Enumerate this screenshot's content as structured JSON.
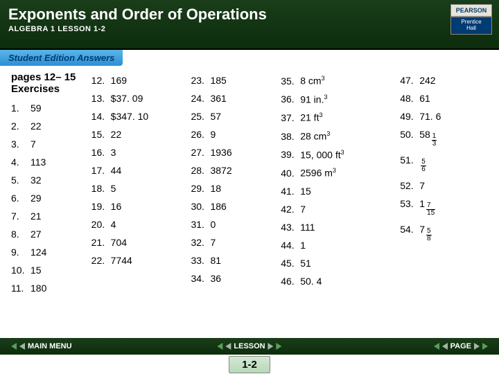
{
  "header": {
    "title": "Exponents and Order of Operations",
    "subtitle": "ALGEBRA 1  LESSON 1-2",
    "logo_top": "PEARSON",
    "logo_bottom_1": "Prentice",
    "logo_bottom_2": "Hall"
  },
  "tab": "Student Edition Answers",
  "section_title": "pages 12– 15  Exercises",
  "answers": {
    "c1": [
      {
        "n": "1.",
        "a": "59"
      },
      {
        "n": "2.",
        "a": "22"
      },
      {
        "n": "3.",
        "a": "7"
      },
      {
        "n": "4.",
        "a": "113"
      },
      {
        "n": "5.",
        "a": "32"
      },
      {
        "n": "6.",
        "a": "29"
      },
      {
        "n": "7.",
        "a": "21"
      },
      {
        "n": "8.",
        "a": "27"
      },
      {
        "n": "9.",
        "a": "124"
      },
      {
        "n": "10.",
        "a": "15"
      },
      {
        "n": "11.",
        "a": "180"
      }
    ],
    "c2": [
      {
        "n": "12.",
        "a": "169"
      },
      {
        "n": "13.",
        "a": "$37. 09"
      },
      {
        "n": "14.",
        "a": "$347. 10"
      },
      {
        "n": "15.",
        "a": "22"
      },
      {
        "n": "16.",
        "a": "3"
      },
      {
        "n": "17.",
        "a": "44"
      },
      {
        "n": "18.",
        "a": "5"
      },
      {
        "n": "19.",
        "a": "16"
      },
      {
        "n": "20.",
        "a": "4"
      },
      {
        "n": "21.",
        "a": "704"
      },
      {
        "n": "22.",
        "a": "7744"
      }
    ],
    "c3": [
      {
        "n": "23.",
        "a": "185"
      },
      {
        "n": "24.",
        "a": "361"
      },
      {
        "n": "25.",
        "a": "57"
      },
      {
        "n": "26.",
        "a": "9"
      },
      {
        "n": "27.",
        "a": "1936"
      },
      {
        "n": "28.",
        "a": "3872"
      },
      {
        "n": "29.",
        "a": "18"
      },
      {
        "n": "30.",
        "a": "186"
      },
      {
        "n": "31.",
        "a": "0"
      },
      {
        "n": "32.",
        "a": "7"
      },
      {
        "n": "33.",
        "a": "81"
      },
      {
        "n": "34.",
        "a": "36"
      }
    ],
    "c4": [
      {
        "n": "35.",
        "a": "8 cm",
        "sup": "3"
      },
      {
        "n": "36.",
        "a": "91 in.",
        "sup": "3"
      },
      {
        "n": "37.",
        "a": "21 ft",
        "sup": "3"
      },
      {
        "n": "38.",
        "a": "28 cm",
        "sup": "3"
      },
      {
        "n": "39.",
        "a": "15, 000 ft",
        "sup": "3"
      },
      {
        "n": "40.",
        "a": "2596 m",
        "sup": "3"
      },
      {
        "n": "41.",
        "a": "15"
      },
      {
        "n": "42.",
        "a": "7"
      },
      {
        "n": "43.",
        "a": "111"
      },
      {
        "n": "44.",
        "a": "1"
      },
      {
        "n": "45.",
        "a": "51"
      },
      {
        "n": "46.",
        "a": "50. 4"
      }
    ],
    "c5": [
      {
        "n": "47.",
        "a": "242"
      },
      {
        "n": "48.",
        "a": "61"
      },
      {
        "n": "49.",
        "a": "71. 6"
      },
      {
        "n": "50.",
        "a": "58",
        "frac": {
          "n": "1",
          "d": "3"
        }
      },
      {
        "n": "51.",
        "a": "",
        "frac": {
          "n": "5",
          "d": "6"
        }
      },
      {
        "n": "52.",
        "a": "7"
      },
      {
        "n": "53.",
        "a": "1",
        "frac": {
          "n": "7",
          "d": "15"
        }
      },
      {
        "n": "54.",
        "a": "7",
        "frac": {
          "n": "5",
          "d": "8"
        }
      }
    ]
  },
  "footer": {
    "main_menu": "MAIN MENU",
    "lesson": "LESSON",
    "page": "PAGE",
    "page_num": "1-2"
  }
}
